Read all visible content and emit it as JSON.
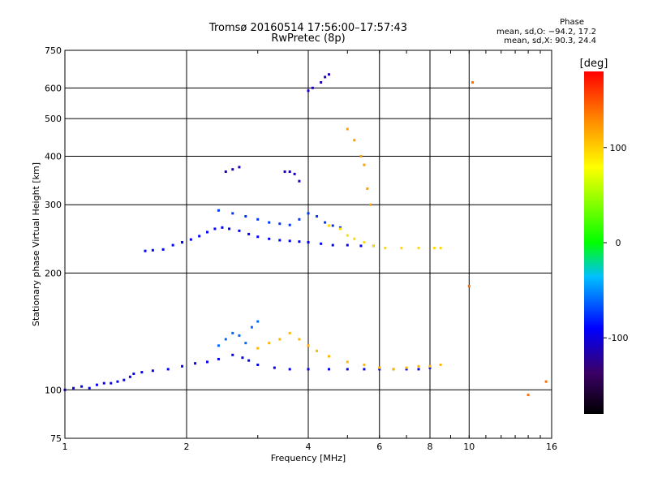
{
  "header": {
    "title": "Tromsø 20160514 17:56:00–17:57:43",
    "subtitle": "RwPretec (8p)",
    "phase_title": "Phase",
    "phase_o": "mean, sd,O: −94.2, 17.2",
    "phase_x": "mean, sd,X:  90.3, 24.4"
  },
  "chart_data": {
    "type": "scatter",
    "title": "Tromsø 20160514 17:56:00–17:57:43",
    "subtitle": "RwPretec (8p)",
    "xlabel": "Frequency [MHz]",
    "ylabel": "Stationary phase Virtual Height [km]",
    "xscale": "log",
    "yscale": "log",
    "xlim": [
      1,
      16
    ],
    "ylim": [
      75,
      750
    ],
    "xticks": [
      1,
      2,
      4,
      6,
      8,
      10,
      16
    ],
    "yticks": [
      75,
      100,
      200,
      300,
      400,
      500,
      600,
      750
    ],
    "grid": true,
    "colorbar": {
      "label": "[deg]",
      "range": [
        -180,
        180
      ],
      "ticks": [
        -100,
        0,
        100
      ]
    },
    "series": [
      {
        "points": [
          [
            1.0,
            100
          ],
          [
            1.05,
            101
          ],
          [
            1.1,
            102
          ],
          [
            1.15,
            101
          ],
          [
            1.2,
            103
          ],
          [
            1.25,
            104
          ],
          [
            1.3,
            104
          ],
          [
            1.35,
            105
          ],
          [
            1.4,
            106
          ],
          [
            1.45,
            108
          ],
          [
            1.48,
            110
          ],
          [
            1.55,
            111
          ],
          [
            1.65,
            112
          ],
          [
            1.8,
            113
          ],
          [
            1.95,
            115
          ],
          [
            2.1,
            117
          ],
          [
            2.25,
            118
          ],
          [
            2.4,
            120
          ],
          [
            2.6,
            123
          ],
          [
            2.75,
            121
          ],
          [
            2.85,
            119
          ],
          [
            3.0,
            116
          ],
          [
            3.3,
            114
          ],
          [
            3.6,
            113
          ],
          [
            4.0,
            113
          ],
          [
            4.5,
            113
          ],
          [
            5.0,
            113
          ],
          [
            5.5,
            113
          ],
          [
            6.0,
            113
          ],
          [
            6.5,
            113
          ],
          [
            7.0,
            113
          ],
          [
            7.5,
            113
          ],
          [
            8.0,
            114
          ]
        ],
        "phase": -95
      },
      {
        "points": [
          [
            1.58,
            228
          ],
          [
            1.65,
            229
          ],
          [
            1.75,
            230
          ],
          [
            1.85,
            236
          ],
          [
            1.95,
            240
          ],
          [
            2.05,
            244
          ],
          [
            2.15,
            249
          ],
          [
            2.25,
            255
          ],
          [
            2.35,
            260
          ],
          [
            2.45,
            262
          ],
          [
            2.55,
            260
          ],
          [
            2.7,
            257
          ],
          [
            2.85,
            252
          ],
          [
            3.0,
            248
          ],
          [
            3.2,
            245
          ],
          [
            3.4,
            243
          ],
          [
            3.6,
            242
          ],
          [
            3.8,
            241
          ],
          [
            4.0,
            240
          ],
          [
            4.3,
            238
          ],
          [
            4.6,
            236
          ],
          [
            5.0,
            236
          ],
          [
            5.4,
            235
          ],
          [
            5.8,
            235
          ]
        ],
        "phase": -90
      },
      {
        "points": [
          [
            2.4,
            290
          ],
          [
            2.6,
            285
          ],
          [
            2.8,
            280
          ],
          [
            3.0,
            275
          ],
          [
            3.2,
            270
          ],
          [
            3.4,
            268
          ],
          [
            3.6,
            266
          ],
          [
            3.8,
            275
          ],
          [
            4.0,
            285
          ],
          [
            4.2,
            280
          ],
          [
            4.4,
            270
          ],
          [
            4.6,
            265
          ],
          [
            4.8,
            262
          ]
        ],
        "phase": -75
      },
      {
        "points": [
          [
            3.0,
            128
          ],
          [
            3.2,
            132
          ],
          [
            3.4,
            135
          ],
          [
            3.6,
            140
          ],
          [
            3.8,
            135
          ],
          [
            4.0,
            130
          ],
          [
            4.2,
            126
          ],
          [
            4.5,
            122
          ],
          [
            5.0,
            118
          ],
          [
            5.5,
            116
          ],
          [
            6.0,
            114
          ],
          [
            6.5,
            113
          ],
          [
            7.0,
            114
          ],
          [
            7.5,
            115
          ],
          [
            8.0,
            115
          ],
          [
            8.5,
            116
          ]
        ],
        "phase": 110
      },
      {
        "points": [
          [
            4.5,
            265
          ],
          [
            4.8,
            260
          ],
          [
            5.0,
            250
          ],
          [
            5.2,
            245
          ],
          [
            5.5,
            240
          ],
          [
            5.8,
            235
          ],
          [
            6.2,
            232
          ],
          [
            6.8,
            232
          ],
          [
            7.5,
            232
          ],
          [
            8.2,
            232
          ],
          [
            8.5,
            232
          ]
        ],
        "phase": 95
      },
      {
        "points": [
          [
            2.4,
            130
          ],
          [
            2.5,
            135
          ],
          [
            2.6,
            140
          ],
          [
            2.7,
            138
          ],
          [
            2.8,
            132
          ],
          [
            2.9,
            145
          ],
          [
            3.0,
            150
          ]
        ],
        "phase": -60
      },
      {
        "points": [
          [
            2.5,
            365
          ],
          [
            2.6,
            370
          ],
          [
            2.7,
            375
          ],
          [
            3.5,
            365
          ],
          [
            3.6,
            365
          ],
          [
            3.7,
            360
          ],
          [
            3.8,
            345
          ],
          [
            4.0,
            590
          ],
          [
            4.1,
            600
          ],
          [
            4.3,
            620
          ],
          [
            4.4,
            640
          ],
          [
            4.5,
            650
          ]
        ],
        "phase": -110
      },
      {
        "points": [
          [
            5.0,
            470
          ],
          [
            5.2,
            440
          ],
          [
            5.4,
            400
          ],
          [
            5.5,
            380
          ],
          [
            5.6,
            330
          ],
          [
            5.7,
            300
          ]
        ],
        "phase": 120
      },
      {
        "points": [
          [
            10.0,
            185
          ],
          [
            10.2,
            620
          ],
          [
            14.0,
            97
          ],
          [
            15.5,
            105
          ]
        ],
        "phase": 140
      }
    ]
  }
}
